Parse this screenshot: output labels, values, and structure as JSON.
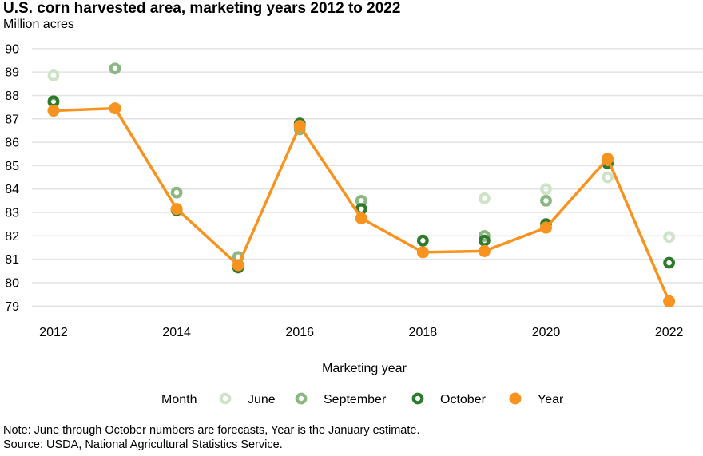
{
  "title": "U.S. corn harvested area, marketing years 2012 to 2022",
  "subtitle": "Million acres",
  "note": "Note: June through October numbers are forecasts, Year is the January estimate.",
  "source": "Source: USDA, National Agricultural Statistics Service.",
  "colors": {
    "june": "#cfe3c9",
    "september": "#8cb783",
    "october": "#2f7a2c",
    "year": "#f7931e",
    "grid": "#e3e3e3"
  },
  "chart_data": {
    "type": "line",
    "xlabel": "Marketing year",
    "ylabel": "",
    "xlim": [
      2011.65,
      2022.55
    ],
    "ylim": [
      78.6,
      90.2
    ],
    "x_ticks": [
      2012,
      2014,
      2016,
      2018,
      2020,
      2022
    ],
    "y_ticks": [
      79,
      80,
      81,
      82,
      83,
      84,
      85,
      86,
      87,
      88,
      89,
      90
    ],
    "grid": "horizontal",
    "legend_title": "Month",
    "legend_position": "bottom",
    "series": [
      {
        "name": "June",
        "style": "ring",
        "color": "#cfe3c9",
        "points": [
          [
            2012,
            88.85
          ],
          [
            2016,
            86.6
          ],
          [
            2017,
            83.5
          ],
          [
            2019,
            83.6
          ],
          [
            2020,
            84.0
          ],
          [
            2021,
            84.5
          ],
          [
            2022,
            81.95
          ]
        ]
      },
      {
        "name": "September",
        "style": "ring",
        "color": "#8cb783",
        "points": [
          [
            2012,
            87.7
          ],
          [
            2013,
            89.15
          ],
          [
            2014,
            83.85
          ],
          [
            2015,
            81.1
          ],
          [
            2016,
            86.55
          ],
          [
            2017,
            83.5
          ],
          [
            2019,
            82.0
          ],
          [
            2020,
            83.5
          ]
        ]
      },
      {
        "name": "October",
        "style": "ring",
        "color": "#2f7a2c",
        "points": [
          [
            2012,
            87.75
          ],
          [
            2014,
            83.1
          ],
          [
            2015,
            80.65
          ],
          [
            2016,
            86.8
          ],
          [
            2017,
            83.15
          ],
          [
            2018,
            81.8
          ],
          [
            2019,
            81.8
          ],
          [
            2020,
            82.5
          ],
          [
            2021,
            85.1
          ],
          [
            2022,
            80.85
          ]
        ]
      },
      {
        "name": "Year",
        "style": "line",
        "color": "#f7931e",
        "points": [
          [
            2012,
            87.35
          ],
          [
            2013,
            87.45
          ],
          [
            2014,
            83.15
          ],
          [
            2015,
            80.75
          ],
          [
            2016,
            86.7
          ],
          [
            2017,
            82.75
          ],
          [
            2018,
            81.3
          ],
          [
            2019,
            81.35
          ],
          [
            2020,
            82.35
          ],
          [
            2021,
            85.3
          ],
          [
            2022,
            79.2
          ]
        ]
      }
    ]
  }
}
